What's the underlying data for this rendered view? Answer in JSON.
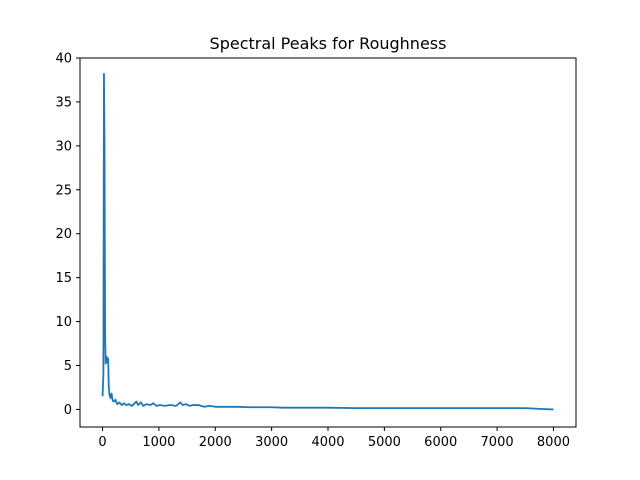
{
  "chart_data": {
    "type": "line",
    "title": "Spectral Peaks for Roughness",
    "xlabel": "",
    "ylabel": "",
    "xlim": [
      -400,
      8400
    ],
    "ylim": [
      -2,
      40
    ],
    "xticks": [
      0,
      1000,
      2000,
      3000,
      4000,
      5000,
      6000,
      7000,
      8000
    ],
    "yticks": [
      0,
      5,
      10,
      15,
      20,
      25,
      30,
      35,
      40
    ],
    "grid": false,
    "legend": "none",
    "colors": {
      "line": "#1f77b4"
    },
    "series": [
      {
        "values": [
          [
            0,
            1.5
          ],
          [
            15,
            4.0
          ],
          [
            25,
            38.2
          ],
          [
            35,
            30.0
          ],
          [
            45,
            9.0
          ],
          [
            55,
            5.2
          ],
          [
            70,
            6.0
          ],
          [
            85,
            5.4
          ],
          [
            100,
            5.8
          ],
          [
            110,
            2.6
          ],
          [
            125,
            1.6
          ],
          [
            140,
            1.3
          ],
          [
            160,
            1.8
          ],
          [
            180,
            1.0
          ],
          [
            200,
            0.9
          ],
          [
            230,
            1.1
          ],
          [
            260,
            0.6
          ],
          [
            300,
            0.8
          ],
          [
            340,
            0.5
          ],
          [
            380,
            0.7
          ],
          [
            420,
            0.5
          ],
          [
            470,
            0.6
          ],
          [
            520,
            0.4
          ],
          [
            570,
            0.7
          ],
          [
            600,
            0.9
          ],
          [
            630,
            0.5
          ],
          [
            680,
            0.8
          ],
          [
            720,
            0.4
          ],
          [
            780,
            0.6
          ],
          [
            850,
            0.5
          ],
          [
            900,
            0.7
          ],
          [
            960,
            0.4
          ],
          [
            1020,
            0.5
          ],
          [
            1100,
            0.4
          ],
          [
            1200,
            0.5
          ],
          [
            1300,
            0.4
          ],
          [
            1380,
            0.8
          ],
          [
            1420,
            0.5
          ],
          [
            1480,
            0.6
          ],
          [
            1550,
            0.4
          ],
          [
            1600,
            0.5
          ],
          [
            1700,
            0.5
          ],
          [
            1800,
            0.3
          ],
          [
            1900,
            0.4
          ],
          [
            2000,
            0.3
          ],
          [
            2200,
            0.3
          ],
          [
            2400,
            0.3
          ],
          [
            2600,
            0.25
          ],
          [
            2800,
            0.25
          ],
          [
            3000,
            0.25
          ],
          [
            3200,
            0.2
          ],
          [
            3500,
            0.2
          ],
          [
            4000,
            0.2
          ],
          [
            4500,
            0.15
          ],
          [
            5000,
            0.15
          ],
          [
            5500,
            0.15
          ],
          [
            6000,
            0.15
          ],
          [
            6500,
            0.15
          ],
          [
            7000,
            0.15
          ],
          [
            7500,
            0.15
          ],
          [
            7800,
            0.05
          ],
          [
            8000,
            0.0
          ]
        ]
      }
    ]
  }
}
